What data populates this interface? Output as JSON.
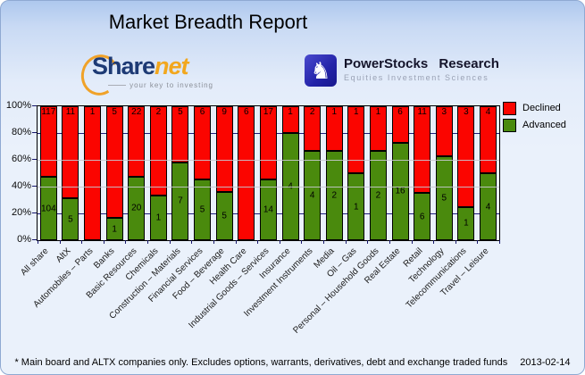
{
  "title": "Market Breadth Report",
  "logos": {
    "sharenet": {
      "word_main": "Share",
      "word_accent": "net",
      "tagline": "your key to investing",
      "accent_color": "#f2a71e",
      "main_color": "#1d3a75"
    },
    "powerstocks": {
      "icon": "knight-chess-icon",
      "icon_glyph": "♞",
      "name": "PowerStocks Research",
      "tagline": "Equities Investment Sciences",
      "badge_color": "#2323a8"
    }
  },
  "legend": {
    "items": [
      {
        "label": "Declined",
        "color": "#fb0500"
      },
      {
        "label": "Advanced",
        "color": "#4a8a0d"
      }
    ]
  },
  "footer": {
    "note": "* Main board and ALTX companies only. Excludes options, warrants, derivatives, debt and exchange traded funds",
    "date": "2013-02-14"
  },
  "chart_data": {
    "type": "bar",
    "stacked": true,
    "percent_stacked": true,
    "title": "Market Breadth Report",
    "categories": [
      "All share",
      "AltX",
      "Automobiles – Parts",
      "Banks",
      "Basic Resources",
      "Chemicals",
      "Construction – Materials",
      "Financial Services",
      "Food – Beverage",
      "Health Care",
      "Industrial Goods – Services",
      "Insurance",
      "Investment Instruments",
      "Media",
      "Oil – Gas",
      "Personal – Household Goods",
      "Real Estate",
      "Retail",
      "Technology",
      "Telecommunications",
      "Travel – Leisure"
    ],
    "series": [
      {
        "name": "Declined",
        "color": "#fb0500",
        "values": [
          117,
          11,
          1,
          5,
          22,
          2,
          5,
          6,
          9,
          6,
          17,
          1,
          2,
          1,
          1,
          1,
          6,
          11,
          3,
          3,
          4
        ]
      },
      {
        "name": "Advanced",
        "color": "#4a8a0d",
        "values": [
          104,
          5,
          0,
          1,
          20,
          1,
          7,
          5,
          5,
          0,
          14,
          4,
          4,
          2,
          1,
          2,
          16,
          6,
          5,
          1,
          4
        ]
      }
    ],
    "value_labels_on_bars": true,
    "ylim": [
      0,
      100
    ],
    "yticks": [
      "0%",
      "20%",
      "40%",
      "60%",
      "80%",
      "100%"
    ],
    "grid": true,
    "legend_position": "right",
    "xlabel": "",
    "ylabel": ""
  }
}
